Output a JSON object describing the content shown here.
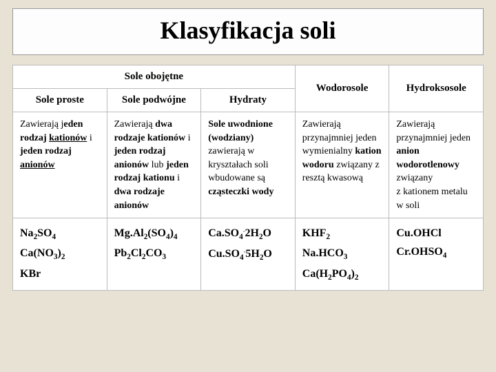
{
  "title": "Klasyfikacja soli",
  "headers": {
    "obojetne": "Sole obojętne",
    "wodoro": "Wodorosole",
    "hydroxo": "Hydroksosole",
    "proste": "Sole proste",
    "podwojne": "Sole podwójne",
    "hydraty": "Hydraty"
  }
}
